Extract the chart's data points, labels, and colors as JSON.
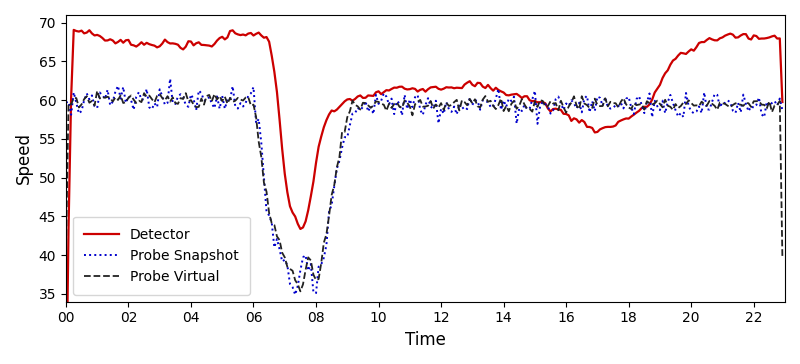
{
  "title": "",
  "xlabel": "Time",
  "ylabel": "Speed",
  "ylim": [
    34,
    71
  ],
  "xlim": [
    0,
    276
  ],
  "xtick_positions": [
    0,
    24,
    48,
    72,
    96,
    120,
    144,
    168,
    192,
    216,
    240,
    264
  ],
  "xtick_labels": [
    "00",
    "02",
    "04",
    "06",
    "08",
    "10",
    "12",
    "14",
    "16",
    "18",
    "20",
    "22"
  ],
  "ytick_positions": [
    35,
    40,
    45,
    50,
    55,
    60,
    65,
    70
  ],
  "ytick_labels": [
    "35",
    "40",
    "45",
    "50",
    "55",
    "60",
    "65",
    "70"
  ],
  "legend": {
    "Detector": {
      "color": "#cc0000",
      "linestyle": "solid",
      "linewidth": 1.6
    },
    "Probe Snapshot": {
      "color": "#0000cc",
      "linestyle": "dotted",
      "linewidth": 1.4
    },
    "Probe Virtual": {
      "color": "#222222",
      "linestyle": "dashed",
      "linewidth": 1.3
    }
  },
  "figsize": [
    8.0,
    3.64
  ],
  "dpi": 100
}
